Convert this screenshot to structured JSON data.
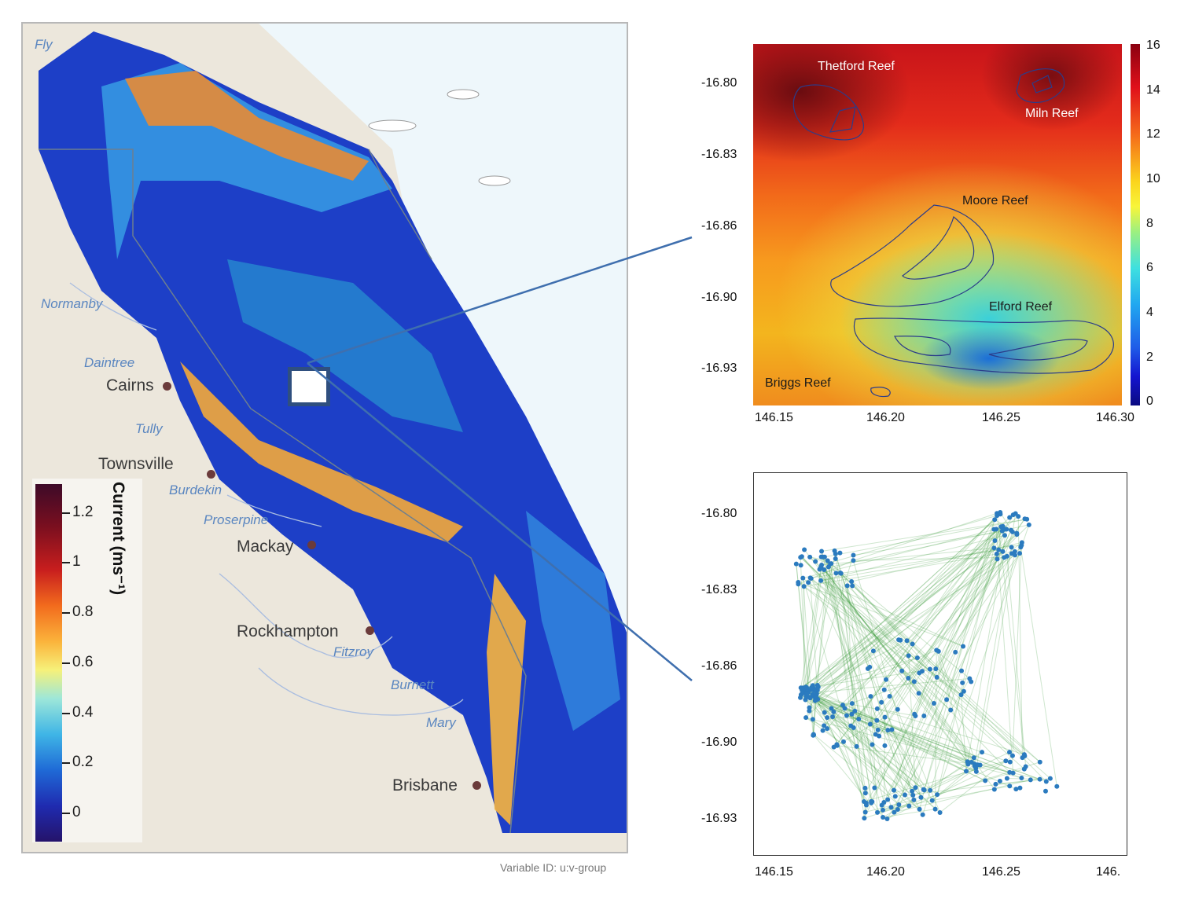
{
  "map": {
    "rivers": [
      "Fly",
      "Normanby",
      "Daintree",
      "Tully",
      "Burdekin",
      "Proserpine",
      "Fitzroy",
      "Burnett",
      "Mary"
    ],
    "cities": [
      "Cairns",
      "Townsville",
      "Mackay",
      "Rockhampton",
      "Brisbane"
    ],
    "legend": {
      "title": "Current (ms⁻¹)",
      "ticks": [
        "1.2",
        "1",
        "0.8",
        "0.6",
        "0.4",
        "0.2",
        "0"
      ]
    },
    "credit": "Variable ID: u:v-group"
  },
  "inset_top": {
    "reefs": [
      "Thetford Reef",
      "Miln Reef",
      "Moore Reef",
      "Elford Reef",
      "Briggs Reef"
    ],
    "colorbar_ticks": [
      "16",
      "14",
      "12",
      "10",
      "8",
      "6",
      "4",
      "2",
      "0"
    ],
    "y_ticks": [
      "-16.80",
      "-16.83",
      "-16.86",
      "-16.90",
      "-16.93"
    ],
    "x_ticks": [
      "146.15",
      "146.20",
      "146.25",
      "146.30"
    ],
    "colors": {
      "high": "#c8141a",
      "mid": "#f8f53a",
      "low": "#1f5ce8"
    }
  },
  "inset_bottom": {
    "y_ticks": [
      "-16.80",
      "-16.83",
      "-16.86",
      "-16.90",
      "-16.93"
    ],
    "x_ticks": [
      "146.15",
      "146.20",
      "146.25",
      "146."
    ],
    "colors": {
      "node": "#2b7bbf",
      "edge": "#3a9a3a"
    }
  }
}
